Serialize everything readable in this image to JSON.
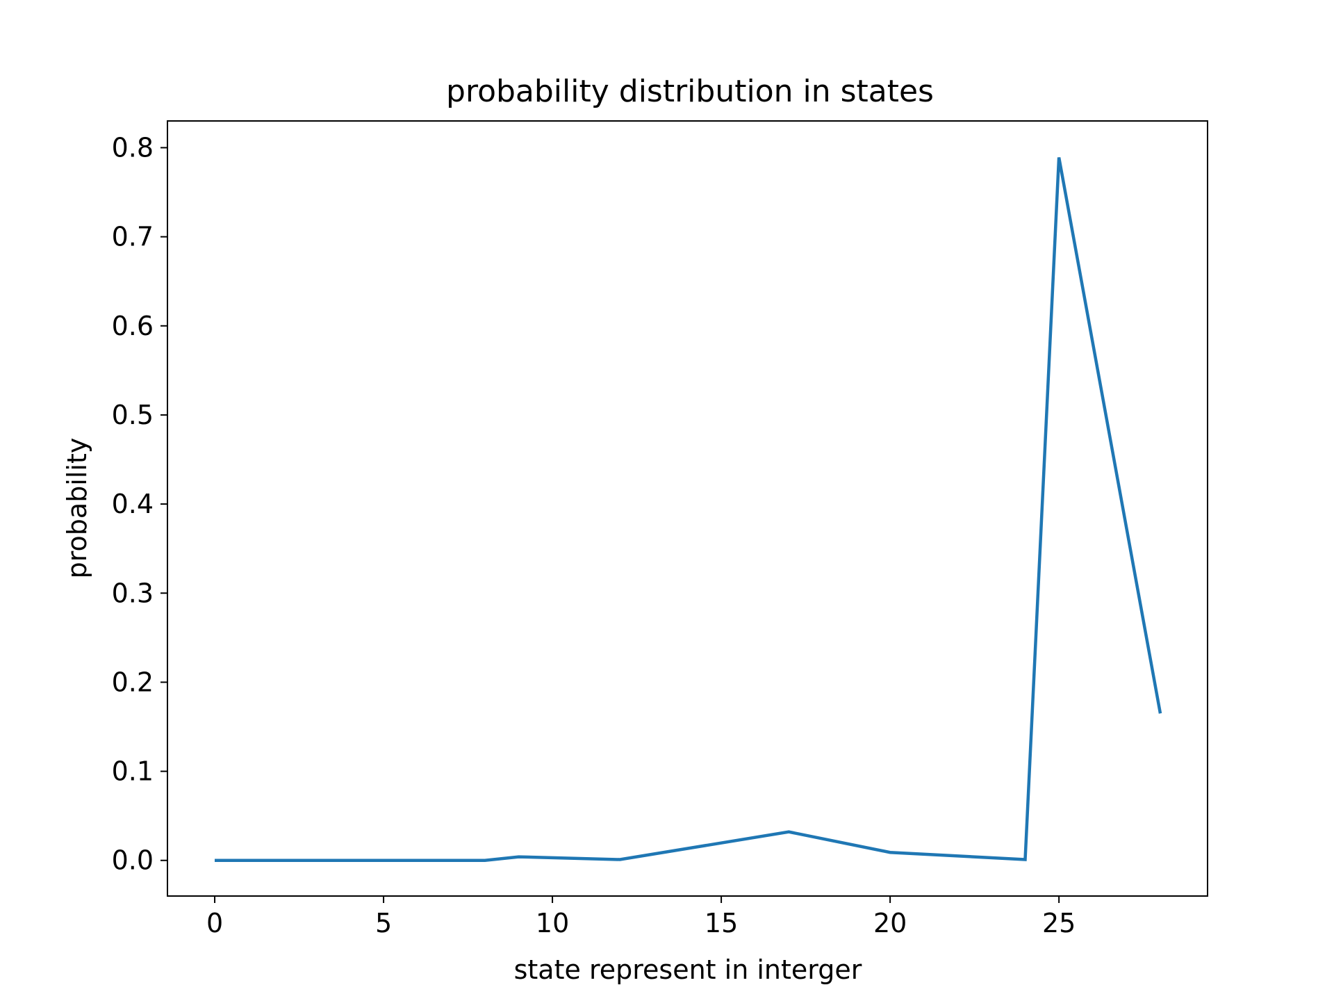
{
  "chart_data": {
    "type": "line",
    "title": "probability distribution in states",
    "xlabel": "state represent in interger",
    "ylabel": "probability",
    "xlim": [
      -1.4,
      29.4
    ],
    "ylim": [
      -0.04,
      0.83
    ],
    "xticks": [
      0,
      5,
      10,
      15,
      20,
      25
    ],
    "yticks": [
      0.0,
      0.1,
      0.2,
      0.3,
      0.4,
      0.5,
      0.6,
      0.7,
      0.8
    ],
    "xtick_labels": [
      "0",
      "5",
      "10",
      "15",
      "20",
      "25"
    ],
    "ytick_labels": [
      "0.0",
      "0.1",
      "0.2",
      "0.3",
      "0.4",
      "0.5",
      "0.6",
      "0.7",
      "0.8"
    ],
    "grid": false,
    "series": [
      {
        "color": "#1f77b4",
        "x": [
          0,
          8,
          9,
          12,
          17,
          20,
          24,
          25,
          28
        ],
        "y": [
          0.0,
          0.0,
          0.004,
          0.001,
          0.032,
          0.009,
          0.001,
          0.789,
          0.165
        ]
      }
    ]
  }
}
